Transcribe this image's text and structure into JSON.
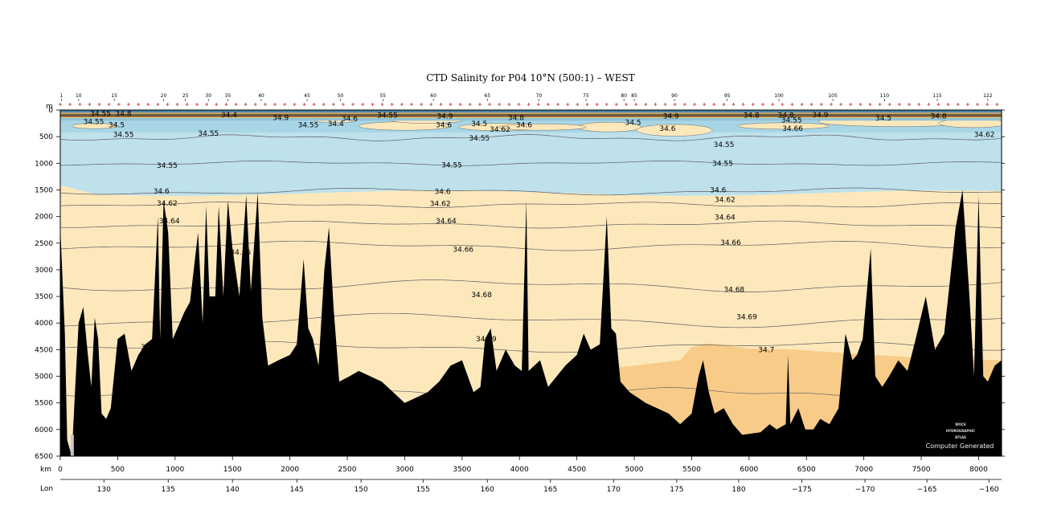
{
  "chart_data": {
    "type": "contour-section",
    "title": "CTD Salinity for P04 10°N (500:1) – WEST",
    "y_unit": "m",
    "x_unit": "km",
    "lon_label": "Lon",
    "xlim": [
      0,
      8200
    ],
    "ylim": [
      6500,
      0
    ],
    "depth_ticks": [
      0,
      500,
      1000,
      1500,
      2000,
      2500,
      3000,
      3500,
      4000,
      4500,
      5000,
      5500,
      6000,
      6500
    ],
    "km_ticks": [
      0,
      500,
      1000,
      1500,
      2000,
      2500,
      3000,
      3500,
      4000,
      4500,
      5000,
      5500,
      6000,
      6500,
      7000,
      7500,
      8000
    ],
    "lon_ticks": [
      {
        "km": 380,
        "label": "130"
      },
      {
        "km": 940,
        "label": "135"
      },
      {
        "km": 1500,
        "label": "140"
      },
      {
        "km": 2060,
        "label": "145"
      },
      {
        "km": 2620,
        "label": "150"
      },
      {
        "km": 3160,
        "label": "155"
      },
      {
        "km": 3720,
        "label": "160"
      },
      {
        "km": 4270,
        "label": "165"
      },
      {
        "km": 4820,
        "label": "170"
      },
      {
        "km": 5370,
        "label": "175"
      },
      {
        "km": 5910,
        "label": "180"
      },
      {
        "km": 6460,
        "label": "−175"
      },
      {
        "km": 7010,
        "label": "−170"
      },
      {
        "km": 7550,
        "label": "−165"
      },
      {
        "km": 8090,
        "label": "−160"
      }
    ],
    "stations": [
      {
        "km": 10,
        "label": "1"
      },
      {
        "km": 160,
        "label": "10"
      },
      {
        "km": 470,
        "label": "15"
      },
      {
        "km": 900,
        "label": "20"
      },
      {
        "km": 1090,
        "label": "25"
      },
      {
        "km": 1290,
        "label": "30"
      },
      {
        "km": 1460,
        "label": "35"
      },
      {
        "km": 1750,
        "label": "40"
      },
      {
        "km": 2150,
        "label": "45"
      },
      {
        "km": 2440,
        "label": "50"
      },
      {
        "km": 2810,
        "label": "55"
      },
      {
        "km": 3250,
        "label": "60"
      },
      {
        "km": 3720,
        "label": "65"
      },
      {
        "km": 4170,
        "label": "70"
      },
      {
        "km": 4580,
        "label": "75"
      },
      {
        "km": 4910,
        "label": "80"
      },
      {
        "km": 5000,
        "label": "85"
      },
      {
        "km": 5350,
        "label": "90"
      },
      {
        "km": 5810,
        "label": "95"
      },
      {
        "km": 6260,
        "label": "100"
      },
      {
        "km": 6730,
        "label": "105"
      },
      {
        "km": 7180,
        "label": "110"
      },
      {
        "km": 7640,
        "label": "115"
      },
      {
        "km": 8080,
        "label": "122"
      }
    ],
    "contour_labels": [
      {
        "value": "34.55",
        "km": 260,
        "depth": 70
      },
      {
        "value": "34.8",
        "km": 480,
        "depth": 70
      },
      {
        "value": "34.4",
        "km": 1400,
        "depth": 90
      },
      {
        "value": "34.9",
        "km": 1850,
        "depth": 140
      },
      {
        "value": "34.55",
        "km": 2760,
        "depth": 100
      },
      {
        "value": "34.9",
        "km": 3280,
        "depth": 110
      },
      {
        "value": "34.8",
        "km": 3900,
        "depth": 140
      },
      {
        "value": "34.9",
        "km": 5250,
        "depth": 110
      },
      {
        "value": "34.8",
        "km": 5950,
        "depth": 100
      },
      {
        "value": "34.8",
        "km": 6250,
        "depth": 100
      },
      {
        "value": "34.9",
        "km": 6550,
        "depth": 90
      },
      {
        "value": "34.5",
        "km": 7100,
        "depth": 150
      },
      {
        "value": "34.8",
        "km": 7580,
        "depth": 110
      },
      {
        "value": "34.55",
        "km": 200,
        "depth": 220
      },
      {
        "value": "34.5",
        "km": 420,
        "depth": 280
      },
      {
        "value": "34.55",
        "km": 2070,
        "depth": 280
      },
      {
        "value": "34.4",
        "km": 2330,
        "depth": 260
      },
      {
        "value": "34.6",
        "km": 2450,
        "depth": 160
      },
      {
        "value": "34.6",
        "km": 3270,
        "depth": 280
      },
      {
        "value": "34.5",
        "km": 3580,
        "depth": 260
      },
      {
        "value": "34.62",
        "km": 3740,
        "depth": 360
      },
      {
        "value": "34.6",
        "km": 3970,
        "depth": 280
      },
      {
        "value": "34.5",
        "km": 4920,
        "depth": 230
      },
      {
        "value": "34.6",
        "km": 5220,
        "depth": 350
      },
      {
        "value": "34.66",
        "km": 6290,
        "depth": 350
      },
      {
        "value": "34.55",
        "km": 6280,
        "depth": 190
      },
      {
        "value": "34.62",
        "km": 7960,
        "depth": 460
      },
      {
        "value": "34.55",
        "km": 460,
        "depth": 460
      },
      {
        "value": "34.55",
        "km": 1200,
        "depth": 440
      },
      {
        "value": "34.55",
        "km": 3560,
        "depth": 530
      },
      {
        "value": "34.55",
        "km": 5690,
        "depth": 650
      },
      {
        "value": "34.55",
        "km": 840,
        "depth": 1040
      },
      {
        "value": "34.55",
        "km": 3320,
        "depth": 1030
      },
      {
        "value": "34.55",
        "km": 5680,
        "depth": 1000
      },
      {
        "value": "34.6",
        "km": 810,
        "depth": 1520
      },
      {
        "value": "34.6",
        "km": 3260,
        "depth": 1530
      },
      {
        "value": "34.6",
        "km": 5660,
        "depth": 1500
      },
      {
        "value": "34.62",
        "km": 840,
        "depth": 1750
      },
      {
        "value": "34.62",
        "km": 3220,
        "depth": 1760
      },
      {
        "value": "34.62",
        "km": 5700,
        "depth": 1680
      },
      {
        "value": "34.64",
        "km": 860,
        "depth": 2080
      },
      {
        "value": "34.64",
        "km": 3270,
        "depth": 2080
      },
      {
        "value": "34.64",
        "km": 5700,
        "depth": 2010
      },
      {
        "value": "34.66",
        "km": 1480,
        "depth": 2670
      },
      {
        "value": "34.66",
        "km": 3420,
        "depth": 2620
      },
      {
        "value": "34.66",
        "km": 5750,
        "depth": 2490
      },
      {
        "value": "34.68",
        "km": 3580,
        "depth": 3470
      },
      {
        "value": "34.68",
        "km": 5780,
        "depth": 3370
      },
      {
        "value": "34.69",
        "km": 3620,
        "depth": 4300
      },
      {
        "value": "34.69",
        "km": 5890,
        "depth": 3880
      },
      {
        "value": "34.68",
        "km": 700,
        "depth": 4450
      },
      {
        "value": "34.7",
        "km": 6080,
        "depth": 4500
      }
    ]
  },
  "watermark": {
    "line1": "WOCE",
    "line2": "HYDROGRAPHIC",
    "line3": "ATLAS",
    "note": "Computer Generated"
  }
}
